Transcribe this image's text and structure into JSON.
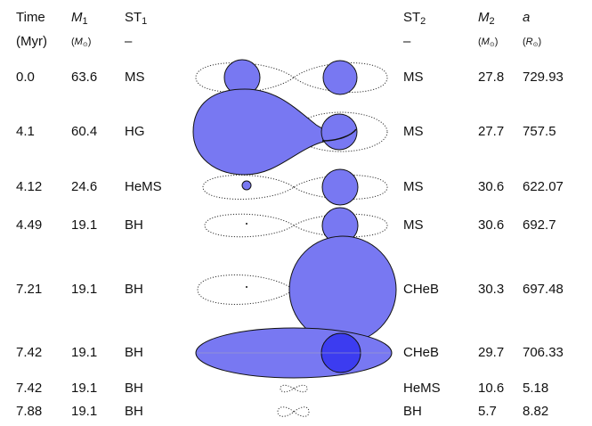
{
  "header": {
    "columns": [
      {
        "label": "Time",
        "unit": "(Myr)"
      },
      {
        "symbol": "M",
        "sub": "1",
        "unit_symbol": "M",
        "unit_sub": "⊙"
      },
      {
        "symbol": "ST",
        "sub": "1",
        "unit": "–"
      },
      {
        "symbol": "ST",
        "sub": "2",
        "unit": "–"
      },
      {
        "symbol": "M",
        "sub": "2",
        "unit_symbol": "M",
        "unit_sub": "⊙"
      },
      {
        "symbol": "a",
        "unit_symbol": "R",
        "unit_sub": "⊙"
      }
    ]
  },
  "table": {
    "rows": [
      [
        "0.0",
        "63.6",
        "MS",
        "MS",
        "27.8",
        "729.93"
      ],
      [
        "4.1",
        "60.4",
        "HG",
        "MS",
        "27.7",
        "757.5"
      ],
      [
        "4.12",
        "24.6",
        "HeMS",
        "MS",
        "30.6",
        "622.07"
      ],
      [
        "4.49",
        "19.1",
        "BH",
        "MS",
        "30.6",
        "692.7"
      ],
      [
        "7.21",
        "19.1",
        "BH",
        "CHeB",
        "30.3",
        "697.48"
      ],
      [
        "7.42",
        "19.1",
        "BH",
        "CHeB",
        "29.7",
        "706.33"
      ],
      [
        "7.42",
        "19.1",
        "BH",
        "HeMS",
        "10.6",
        "5.18"
      ],
      [
        "7.88",
        "19.1",
        "BH",
        "BH",
        "5.7",
        "8.82"
      ]
    ]
  }
}
